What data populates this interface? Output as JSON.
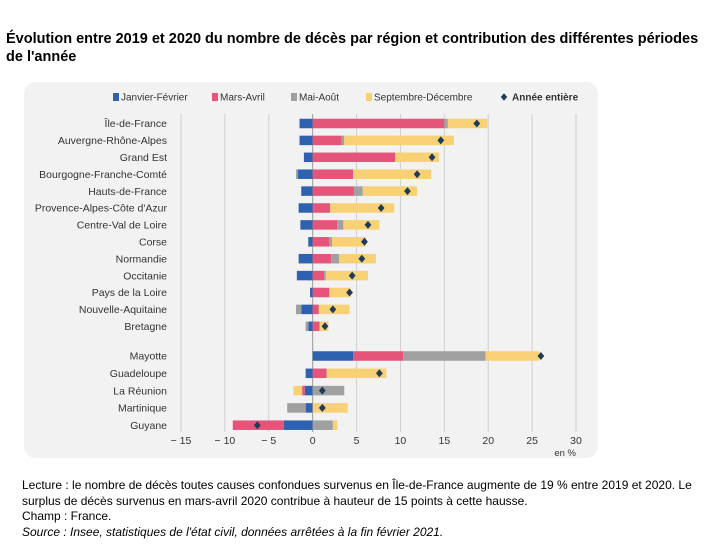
{
  "title": "Évolution entre 2019 et 2020 du nombre de décès par région et contribution des différentes périodes de l'année",
  "notes": {
    "lecture": "Lecture : le nombre de décès toutes causes confondues survenus en Île-de-France augmente de 19 % entre 2019 et 2020. Le surplus de décès survenus en mars-avril 2020 contribue à hauteur de 15 points à cette hausse.",
    "champ": "Champ : France.",
    "source": "Source : Insee, statistiques de l'état civil, données arrêtées à la fin février 2021."
  },
  "chart_data": {
    "type": "bar",
    "orientation": "horizontal",
    "stacked": true,
    "xlim": [
      -15,
      30
    ],
    "xticks": [
      -15,
      -10,
      -5,
      0,
      5,
      10,
      15,
      20,
      25,
      30
    ],
    "xtick_labels": [
      "− 15",
      "− 10",
      "− 5",
      "0",
      "5",
      "10",
      "15",
      "20",
      "25",
      "30"
    ],
    "unit_label": "en %",
    "grid": true,
    "legend_position": "top",
    "colors": {
      "jf": "#2e62b0",
      "ma": "#e5557a",
      "mao": "#a0a0a0",
      "sd": "#f7d173",
      "marker": "#1f3b57"
    },
    "legend": {
      "jf": "Janvier-Février",
      "ma": "Mars-Avril",
      "mao": "Mai-Août",
      "sd": "Septembre-Décembre",
      "total": "Année entière"
    },
    "categories": [
      "Île-de-France",
      "Auvergne-Rhône-Alpes",
      "Grand Est",
      "Bourgogne-Franche-Comté",
      "Hauts-de-France",
      "Provence-Alpes-Côte d'Azur",
      "Centre-Val de Loire",
      "Corse",
      "Normandie",
      "Occitanie",
      "Pays de la Loire",
      "Nouvelle-Aquitaine",
      "Bretagne",
      "Mayotte",
      "Guadeloupe",
      "La Réunion",
      "Martinique",
      "Guyane"
    ],
    "series": [
      {
        "name": "Janvier-Février",
        "key": "jf",
        "values": [
          -1.5,
          -1.5,
          -1.0,
          -1.7,
          -1.3,
          -1.6,
          -1.4,
          -0.5,
          -1.6,
          -1.8,
          -0.3,
          -1.3,
          -0.5,
          4.6,
          -0.8,
          -0.9,
          -0.8,
          -3.3
        ]
      },
      {
        "name": "Mars-Avril",
        "key": "ma",
        "values": [
          15.0,
          3.3,
          9.4,
          4.6,
          4.7,
          2.0,
          2.8,
          1.9,
          2.1,
          1.3,
          1.9,
          0.7,
          0.8,
          5.7,
          1.6,
          -0.3,
          0.0,
          -5.8
        ]
      },
      {
        "name": "Mai-Août",
        "key": "mao",
        "values": [
          0.4,
          0.3,
          0.0,
          -0.2,
          1.0,
          0.0,
          0.7,
          0.3,
          0.9,
          0.2,
          0.0,
          -0.6,
          -0.3,
          9.4,
          0.0,
          3.6,
          -2.1,
          2.3
        ]
      },
      {
        "name": "Septembre-Décembre",
        "key": "sd",
        "values": [
          4.5,
          12.5,
          5.0,
          8.9,
          6.2,
          7.3,
          4.1,
          3.9,
          4.2,
          4.8,
          2.4,
          3.5,
          1.0,
          6.1,
          6.8,
          -1.0,
          4.0,
          0.5
        ]
      }
    ],
    "total": {
      "name": "Année entière",
      "values": [
        18.7,
        14.6,
        13.6,
        11.9,
        10.8,
        7.8,
        6.3,
        5.9,
        5.6,
        4.5,
        4.2,
        2.3,
        1.4,
        26.0,
        7.6,
        1.1,
        1.1,
        -6.3
      ]
    }
  }
}
